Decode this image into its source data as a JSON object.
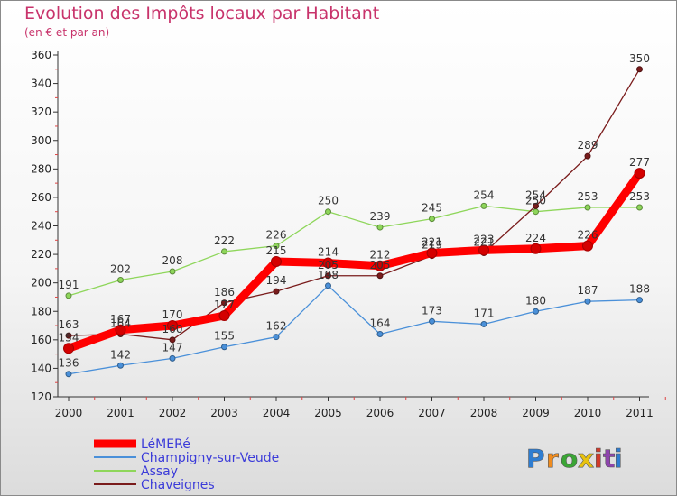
{
  "chart_data": {
    "type": "line",
    "title": "Evolution des Impôts locaux par Habitant",
    "subtitle": "(en € et par an)",
    "xlabel": "",
    "ylabel": "",
    "x": [
      "2000",
      "2001",
      "2002",
      "2003",
      "2004",
      "2005",
      "2006",
      "2007",
      "2008",
      "2009",
      "2010",
      "2011"
    ],
    "ylim": [
      120,
      360
    ],
    "yticks": [
      120,
      140,
      160,
      180,
      200,
      220,
      240,
      260,
      280,
      300,
      320,
      340,
      360
    ],
    "grid": false,
    "legend_position": "bottom-left",
    "series": [
      {
        "name": "LéMERé",
        "color": "#ff0000",
        "highlight": true,
        "values": [
          154,
          167,
          170,
          177,
          215,
          214,
          212,
          221,
          223,
          224,
          226,
          277
        ]
      },
      {
        "name": "Champigny-sur-Veude",
        "color": "#4a90d9",
        "values": [
          136,
          142,
          147,
          155,
          162,
          198,
          164,
          173,
          171,
          180,
          187,
          188
        ]
      },
      {
        "name": "Assay",
        "color": "#8ed65a",
        "values": [
          191,
          202,
          208,
          222,
          226,
          250,
          239,
          245,
          254,
          250,
          253,
          253
        ]
      },
      {
        "name": "Chaveignes",
        "color": "#7a1c1c",
        "values": [
          163,
          164,
          160,
          186,
          194,
          205,
          205,
          219,
          221,
          254,
          289,
          350
        ]
      }
    ]
  },
  "logo": {
    "text": "Proxiti",
    "colors": [
      "#2e7dd1",
      "#f08c1e",
      "#3aa535",
      "#e8c20f",
      "#d23a2a",
      "#8e44ad",
      "#2e7dd1"
    ]
  }
}
